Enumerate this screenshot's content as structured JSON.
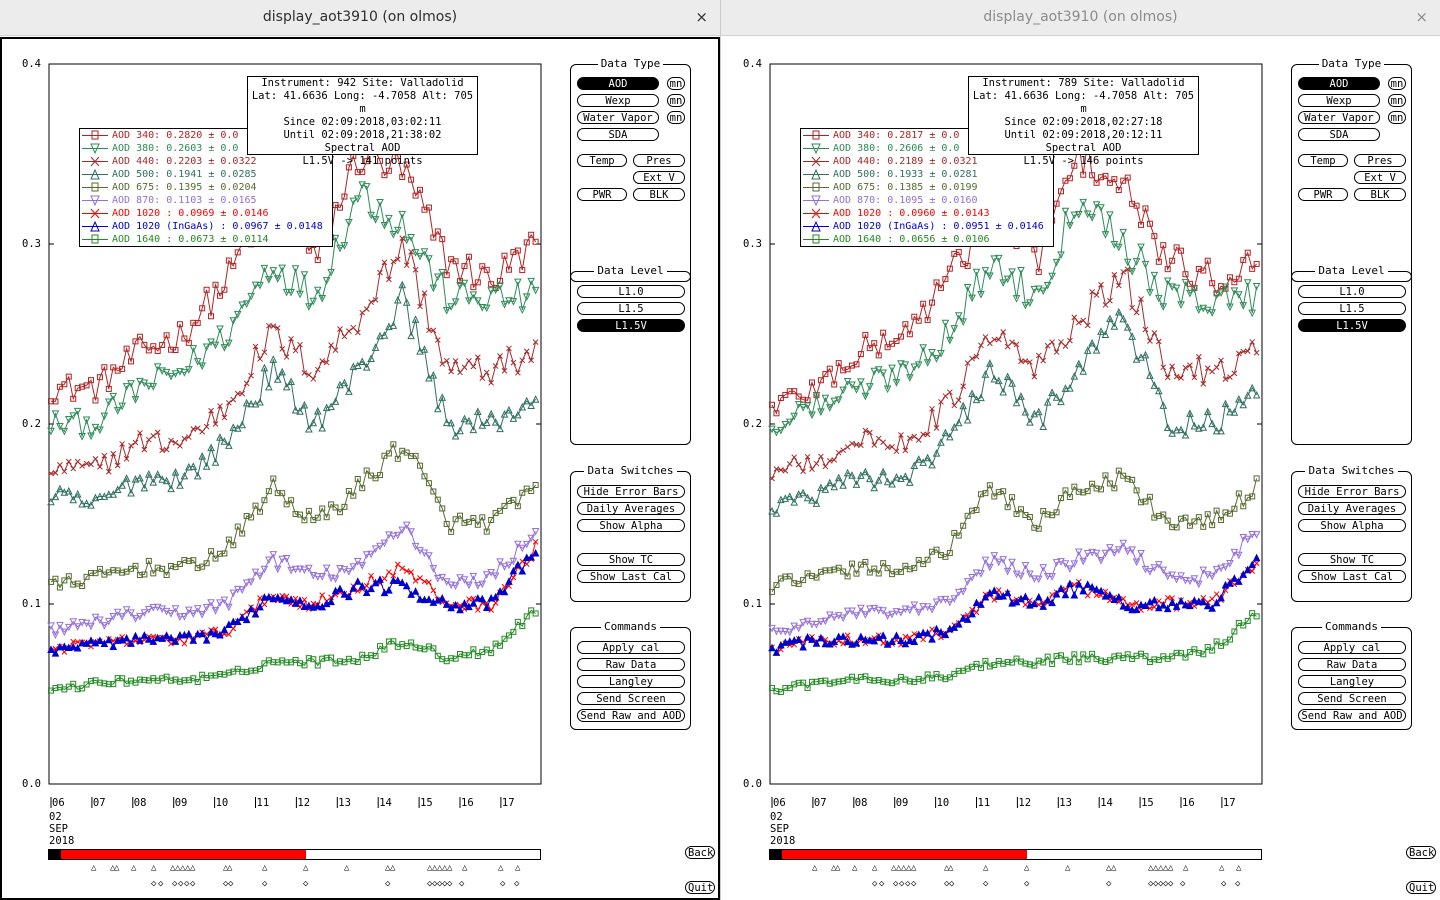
{
  "windows": [
    {
      "title": "display_aot3910 (on olmos)",
      "close": "×",
      "info": [
        "Instrument: 942 Site: Valladolid",
        "Lat: 41.6636 Long: -4.7058 Alt: 705 m",
        "Since 02:09:2018,03:02:11",
        "Until 02:09:2018,21:38:02",
        "Spectral AOD",
        "L1.5V -> 141 points"
      ],
      "legend": [
        {
          "label": "AOD 340",
          "value": ": 0.2820 ± 0.0",
          "color": "#b22222"
        },
        {
          "label": "AOD 380",
          "value": ": 0.2603 ± 0.0",
          "color": "#2e8b57"
        },
        {
          "label": "AOD 440",
          "value": ": 0.2203 ± 0.0322",
          "color": "#a52a2a"
        },
        {
          "label": "AOD 500",
          "value": ": 0.1941 ± 0.0285",
          "color": "#2f6f5f"
        },
        {
          "label": "AOD 675",
          "value": ": 0.1395 ± 0.0204",
          "color": "#556b2f"
        },
        {
          "label": "AOD 870",
          "value": ": 0.1103 ± 0.0165",
          "color": "#9370db"
        },
        {
          "label": "AOD 1020",
          "value": " : 0.0969 ± 0.0146",
          "color": "#ff0000"
        },
        {
          "label": "AOD 1020 (InGaAs)",
          "value": " : 0.0967 ± 0.0148",
          "color": "#0000cd"
        },
        {
          "label": "AOD 1640",
          "value": " : 0.0673 ± 0.0114",
          "color": "#228b22"
        }
      ]
    },
    {
      "title": "display_aot3910 (on olmos)",
      "close": "×",
      "info": [
        "Instrument: 789 Site: Valladolid",
        "Lat: 41.6636 Long: -4.7058 Alt: 705 m",
        "Since 02:09:2018,02:27:18",
        "Until 02:09:2018,20:12:11",
        "Spectral AOD",
        "L1.5V -> 146 points"
      ],
      "legend": [
        {
          "label": "AOD 340",
          "value": ": 0.2817 ± 0.0",
          "color": "#b22222"
        },
        {
          "label": "AOD 380",
          "value": ": 0.2606 ± 0.0",
          "color": "#2e8b57"
        },
        {
          "label": "AOD 440",
          "value": ": 0.2189 ± 0.0321",
          "color": "#a52a2a"
        },
        {
          "label": "AOD 500",
          "value": ": 0.1933 ± 0.0281",
          "color": "#2f6f5f"
        },
        {
          "label": "AOD 675",
          "value": ": 0.1385 ± 0.0199",
          "color": "#556b2f"
        },
        {
          "label": "AOD 870",
          "value": ": 0.1095 ± 0.0160",
          "color": "#9370db"
        },
        {
          "label": "AOD 1020",
          "value": " : 0.0960 ± 0.0143",
          "color": "#ff0000"
        },
        {
          "label": "AOD 1020 (InGaAs)",
          "value": " : 0.0951 ± 0.0146",
          "color": "#0000cd"
        },
        {
          "label": "AOD 1640",
          "value": " : 0.0656 ± 0.0106",
          "color": "#228b22"
        }
      ]
    }
  ],
  "axis": {
    "yticks": [
      "0.4",
      "0.3",
      "0.2",
      "0.1",
      "0.0"
    ],
    "xticks": [
      "06",
      "07",
      "08",
      "09",
      "10",
      "11",
      "12",
      "13",
      "14",
      "15",
      "16",
      "17"
    ],
    "date_lines": [
      "02",
      "SEP",
      "2018"
    ]
  },
  "panels": {
    "data_type": {
      "title": "Data Type",
      "aod": "AOD",
      "wexp": "Wexp",
      "water_vapor": "Water Vapor",
      "sda": "SDA",
      "mn": "mn",
      "temp": "Temp",
      "pres": "Pres",
      "ext_v": "Ext V",
      "pwr": "PWR",
      "blk": "BLK"
    },
    "data_level": {
      "title": "Data Level",
      "l10": "L1.0",
      "l15": "L1.5",
      "l15v": "L1.5V",
      "selected": "L1.5V"
    },
    "data_switches": {
      "title": "Data Switches",
      "hide_error_bars": "Hide Error Bars",
      "daily_averages": "Daily Averages",
      "show_alpha": "Show Alpha",
      "show_tc": "Show TC",
      "show_last_cal": "Show Last Cal"
    },
    "commands": {
      "title": "Commands",
      "apply_cal": "Apply cal",
      "raw_data": "Raw Data",
      "langley": "Langley",
      "send_screen": "Send Screen",
      "send_raw_and_aod": "Send Raw and AOD"
    }
  },
  "side_buttons": {
    "back": "Back",
    "quit": "Quit"
  },
  "chart_data": [
    {
      "type": "line",
      "title": "",
      "ylim": [
        0,
        0.4
      ],
      "x": [
        "06",
        "07",
        "08",
        "09",
        "10",
        "11",
        "12",
        "13",
        "14",
        "15",
        "16",
        "17"
      ],
      "series": [
        {
          "name": "AOD 340",
          "values": [
            0.22,
            0.22,
            0.24,
            0.25,
            0.28,
            0.33,
            0.29,
            0.35,
            0.34,
            0.29,
            0.28,
            0.3
          ]
        },
        {
          "name": "AOD 380",
          "values": [
            0.2,
            0.2,
            0.22,
            0.23,
            0.25,
            0.29,
            0.27,
            0.33,
            0.31,
            0.27,
            0.27,
            0.27
          ]
        },
        {
          "name": "AOD 440",
          "values": [
            0.175,
            0.175,
            0.19,
            0.19,
            0.21,
            0.25,
            0.23,
            0.26,
            0.3,
            0.23,
            0.23,
            0.24
          ]
        },
        {
          "name": "AOD 500",
          "values": [
            0.16,
            0.155,
            0.17,
            0.17,
            0.19,
            0.23,
            0.2,
            0.23,
            0.27,
            0.2,
            0.2,
            0.215
          ]
        },
        {
          "name": "AOD 675",
          "values": [
            0.11,
            0.115,
            0.12,
            0.12,
            0.13,
            0.165,
            0.145,
            0.165,
            0.19,
            0.145,
            0.145,
            0.165
          ]
        },
        {
          "name": "AOD 870",
          "values": [
            0.085,
            0.09,
            0.095,
            0.095,
            0.1,
            0.125,
            0.115,
            0.12,
            0.145,
            0.11,
            0.115,
            0.14
          ]
        },
        {
          "name": "AOD 1020",
          "values": [
            0.075,
            0.078,
            0.08,
            0.08,
            0.085,
            0.105,
            0.1,
            0.11,
            0.12,
            0.1,
            0.1,
            0.13
          ]
        },
        {
          "name": "AOD 1020 (InGaAs)",
          "values": [
            0.075,
            0.078,
            0.08,
            0.08,
            0.085,
            0.105,
            0.1,
            0.11,
            0.11,
            0.1,
            0.1,
            0.13
          ]
        },
        {
          "name": "AOD 1640",
          "values": [
            0.052,
            0.056,
            0.058,
            0.058,
            0.06,
            0.068,
            0.068,
            0.07,
            0.08,
            0.07,
            0.075,
            0.097
          ]
        }
      ]
    },
    {
      "type": "line",
      "title": "",
      "ylim": [
        0,
        0.4
      ],
      "x": [
        "06",
        "07",
        "08",
        "09",
        "10",
        "11",
        "12",
        "13",
        "14",
        "15",
        "16",
        "17"
      ],
      "series": [
        {
          "name": "AOD 340",
          "values": [
            0.21,
            0.22,
            0.24,
            0.25,
            0.28,
            0.32,
            0.29,
            0.35,
            0.33,
            0.29,
            0.28,
            0.29
          ]
        },
        {
          "name": "AOD 380",
          "values": [
            0.2,
            0.21,
            0.22,
            0.23,
            0.25,
            0.29,
            0.27,
            0.33,
            0.3,
            0.27,
            0.27,
            0.27
          ]
        },
        {
          "name": "AOD 440",
          "values": [
            0.175,
            0.18,
            0.19,
            0.19,
            0.21,
            0.25,
            0.23,
            0.26,
            0.28,
            0.23,
            0.23,
            0.24
          ]
        },
        {
          "name": "AOD 500",
          "values": [
            0.155,
            0.16,
            0.17,
            0.17,
            0.19,
            0.23,
            0.2,
            0.235,
            0.26,
            0.2,
            0.2,
            0.215
          ]
        },
        {
          "name": "AOD 675",
          "values": [
            0.11,
            0.115,
            0.12,
            0.12,
            0.13,
            0.165,
            0.145,
            0.165,
            0.17,
            0.145,
            0.145,
            0.165
          ]
        },
        {
          "name": "AOD 870",
          "values": [
            0.085,
            0.09,
            0.095,
            0.095,
            0.1,
            0.125,
            0.115,
            0.125,
            0.13,
            0.115,
            0.115,
            0.14
          ]
        },
        {
          "name": "AOD 1020",
          "values": [
            0.075,
            0.08,
            0.08,
            0.08,
            0.085,
            0.105,
            0.1,
            0.11,
            0.1,
            0.1,
            0.1,
            0.125
          ]
        },
        {
          "name": "AOD 1020 (InGaAs)",
          "values": [
            0.075,
            0.08,
            0.08,
            0.08,
            0.085,
            0.105,
            0.1,
            0.11,
            0.1,
            0.1,
            0.1,
            0.125
          ]
        },
        {
          "name": "AOD 1640",
          "values": [
            0.052,
            0.056,
            0.058,
            0.058,
            0.06,
            0.068,
            0.068,
            0.07,
            0.07,
            0.07,
            0.075,
            0.095
          ]
        }
      ]
    }
  ]
}
